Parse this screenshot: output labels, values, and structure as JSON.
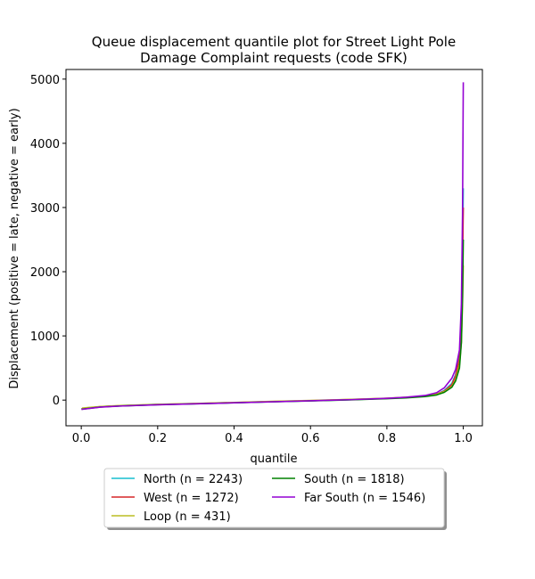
{
  "chart_data": {
    "type": "line",
    "title_line1": "Queue displacement quantile plot for Street Light Pole",
    "title_line2": "Damage Complaint  requests (code SFK)",
    "xlabel": "quantile",
    "ylabel": "Displacement (positive = late, negative = early)",
    "xlim": [
      -0.04,
      1.05
    ],
    "ylim": [
      -400,
      5150
    ],
    "xticks": [
      0.0,
      0.2,
      0.4,
      0.6,
      0.8,
      1.0
    ],
    "xtick_labels": [
      "0.0",
      "0.2",
      "0.4",
      "0.6",
      "0.8",
      "1.0"
    ],
    "yticks": [
      0,
      1000,
      2000,
      3000,
      4000,
      5000
    ],
    "ytick_labels": [
      "0",
      "1000",
      "2000",
      "3000",
      "4000",
      "5000"
    ],
    "grid": false,
    "legend_position": "bottom-center",
    "series": [
      {
        "name": "North (n = 2243)",
        "color": "#17becf",
        "x": [
          0.0005,
          0.02,
          0.05,
          0.1,
          0.2,
          0.3,
          0.4,
          0.5,
          0.6,
          0.7,
          0.8,
          0.85,
          0.9,
          0.93,
          0.95,
          0.97,
          0.98,
          0.99,
          0.995,
          0.998,
          1.0
        ],
        "y": [
          -140,
          -125,
          -105,
          -90,
          -70,
          -55,
          -40,
          -25,
          -10,
          5,
          25,
          40,
          60,
          90,
          150,
          260,
          400,
          700,
          1300,
          2200,
          3300
        ]
      },
      {
        "name": "West (n = 1272)",
        "color": "#d62728",
        "x": [
          0.0008,
          0.02,
          0.05,
          0.1,
          0.2,
          0.3,
          0.4,
          0.5,
          0.6,
          0.7,
          0.8,
          0.85,
          0.9,
          0.93,
          0.95,
          0.97,
          0.98,
          0.99,
          0.995,
          0.998,
          1.0
        ],
        "y": [
          -135,
          -120,
          -102,
          -88,
          -68,
          -53,
          -38,
          -22,
          -8,
          8,
          28,
          42,
          62,
          95,
          140,
          240,
          380,
          650,
          1200,
          2100,
          3000
        ]
      },
      {
        "name": "Loop (n = 431)",
        "color": "#bcbd22",
        "x": [
          0.002,
          0.02,
          0.05,
          0.1,
          0.2,
          0.3,
          0.4,
          0.5,
          0.6,
          0.7,
          0.8,
          0.85,
          0.9,
          0.93,
          0.95,
          0.97,
          0.98,
          0.99,
          0.995,
          0.998,
          1.0
        ],
        "y": [
          -125,
          -115,
          -100,
          -85,
          -66,
          -52,
          -36,
          -20,
          -5,
          10,
          30,
          45,
          65,
          90,
          130,
          210,
          320,
          550,
          900,
          1500,
          2100
        ]
      },
      {
        "name": "South (n = 1818)",
        "color": "#008000",
        "x": [
          0.0006,
          0.02,
          0.05,
          0.1,
          0.2,
          0.3,
          0.4,
          0.5,
          0.6,
          0.7,
          0.8,
          0.85,
          0.9,
          0.93,
          0.95,
          0.97,
          0.98,
          0.99,
          0.995,
          0.998,
          1.0
        ],
        "y": [
          -142,
          -128,
          -108,
          -92,
          -72,
          -57,
          -42,
          -27,
          -12,
          3,
          22,
          35,
          55,
          80,
          120,
          200,
          300,
          500,
          900,
          1600,
          2500
        ]
      },
      {
        "name": "Far South (n = 1546)",
        "color": "#9400d3",
        "x": [
          0.0006,
          0.02,
          0.05,
          0.1,
          0.2,
          0.3,
          0.4,
          0.5,
          0.6,
          0.7,
          0.8,
          0.85,
          0.9,
          0.93,
          0.95,
          0.97,
          0.98,
          0.99,
          0.995,
          0.998,
          1.0
        ],
        "y": [
          -145,
          -130,
          -110,
          -93,
          -73,
          -57,
          -42,
          -26,
          -10,
          6,
          28,
          45,
          72,
          115,
          190,
          340,
          480,
          780,
          1500,
          2900,
          4950
        ]
      }
    ]
  }
}
